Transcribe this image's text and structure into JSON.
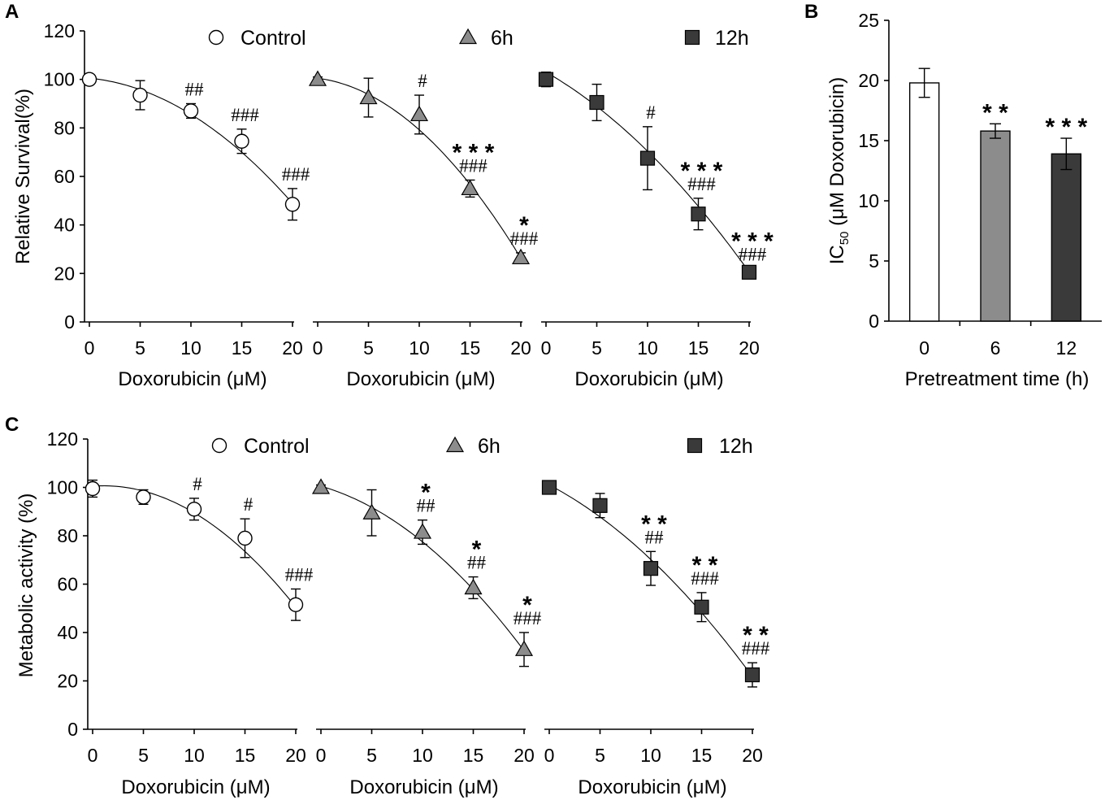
{
  "panel_labels": [
    "A",
    "B",
    "C"
  ],
  "colors": {
    "control": "#ffffff",
    "h6": "#8c8c8c",
    "h12": "#3a3a3a",
    "outline": "#000000"
  },
  "legend": [
    {
      "label": "Control",
      "marker": "circle"
    },
    {
      "label": "6h",
      "marker": "triangle"
    },
    {
      "label": "12h",
      "marker": "square"
    }
  ],
  "chart_data": [
    {
      "id": "A",
      "type": "line",
      "title": "",
      "ylabel": "Relative Survival(%)",
      "xlabel": "Doxorubicin (μM)",
      "ylim": [
        0,
        120
      ],
      "yticks": [
        0,
        20,
        40,
        60,
        80,
        100,
        120
      ],
      "xticks": [
        0,
        5,
        10,
        15,
        20
      ],
      "series": [
        {
          "name": "Control",
          "marker": "circle",
          "x": [
            0,
            5,
            10,
            15,
            20
          ],
          "y": [
            100,
            93.5,
            87,
            74.5,
            48.5
          ],
          "err": [
            1.5,
            6,
            3,
            5,
            6.5
          ],
          "fit": [
            100.5,
            -0.4,
            -0.109
          ],
          "annot": [
            "",
            "",
            "##",
            "###",
            "###"
          ],
          "stars": [
            "",
            "",
            "",
            "",
            ""
          ]
        },
        {
          "name": "6h",
          "marker": "triangle",
          "x": [
            0,
            5,
            10,
            15,
            20
          ],
          "y": [
            100,
            92.5,
            85.5,
            55,
            26.5
          ],
          "err": [
            1,
            8,
            8,
            3.5,
            2
          ],
          "fit": [
            100.5,
            -0.55,
            -0.158
          ],
          "annot": [
            "",
            "",
            "#",
            "###",
            "###"
          ],
          "stars": [
            "",
            "",
            "",
            "***",
            "*"
          ]
        },
        {
          "name": "12h",
          "marker": "square",
          "x": [
            0,
            5,
            10,
            15,
            20
          ],
          "y": [
            100,
            90.5,
            67.5,
            44.5,
            20.5
          ],
          "err": [
            3,
            7.5,
            13,
            6.5,
            1.5
          ],
          "fit": [
            103,
            -2.4,
            -0.086
          ],
          "annot": [
            "",
            "",
            "#",
            "###",
            "###"
          ],
          "stars": [
            "",
            "",
            "",
            "***",
            "***"
          ]
        }
      ]
    },
    {
      "id": "B",
      "type": "bar",
      "ylabel_main": "IC",
      "ylabel_sub": "50",
      "ylabel_rest": " (μM Doxorubicin)",
      "xlabel": "Pretreatment time (h)",
      "categories": [
        "0",
        "6",
        "12"
      ],
      "values": [
        19.8,
        15.8,
        13.9
      ],
      "errors": [
        1.2,
        0.6,
        1.3
      ],
      "stars": [
        "",
        "**",
        "***"
      ],
      "ylim": [
        0,
        25
      ],
      "yticks": [
        0,
        5,
        10,
        15,
        20,
        25
      ]
    },
    {
      "id": "C",
      "type": "line",
      "title": "",
      "ylabel": "Metabolic activity (%)",
      "xlabel": "Doxorubicin (μM)",
      "ylim": [
        0,
        120
      ],
      "yticks": [
        0,
        20,
        40,
        60,
        80,
        100,
        120
      ],
      "xticks": [
        0,
        5,
        10,
        15,
        20
      ],
      "series": [
        {
          "name": "Control",
          "marker": "circle",
          "x": [
            0,
            5,
            10,
            15,
            20
          ],
          "y": [
            99.5,
            96,
            91,
            79,
            51.5
          ],
          "err": [
            3.5,
            3,
            4.5,
            8,
            6.5
          ],
          "fit": [
            100.5,
            0.3,
            -0.14
          ],
          "annot": [
            "",
            "",
            "#",
            "#",
            "###"
          ],
          "stars": [
            "",
            "",
            "",
            "",
            ""
          ]
        },
        {
          "name": "6h",
          "marker": "triangle",
          "x": [
            0,
            5,
            10,
            15,
            20
          ],
          "y": [
            100,
            89.5,
            81.5,
            58.5,
            33
          ],
          "err": [
            1,
            9.5,
            5,
            4.5,
            7
          ],
          "fit": [
            100.5,
            -1.2,
            -0.11
          ],
          "annot": [
            "",
            "",
            "##",
            "##",
            "###"
          ],
          "stars": [
            "",
            "",
            "*",
            "*",
            "*"
          ]
        },
        {
          "name": "12h",
          "marker": "square",
          "x": [
            0,
            5,
            10,
            15,
            20
          ],
          "y": [
            100,
            92.5,
            66.5,
            50.5,
            22.5
          ],
          "err": [
            0.5,
            5,
            7,
            6,
            5
          ],
          "fit": [
            101,
            -2.2,
            -0.088
          ],
          "annot": [
            "",
            "",
            "##",
            "###",
            "###"
          ],
          "stars": [
            "",
            "",
            "**",
            "**",
            "**"
          ]
        }
      ]
    }
  ]
}
